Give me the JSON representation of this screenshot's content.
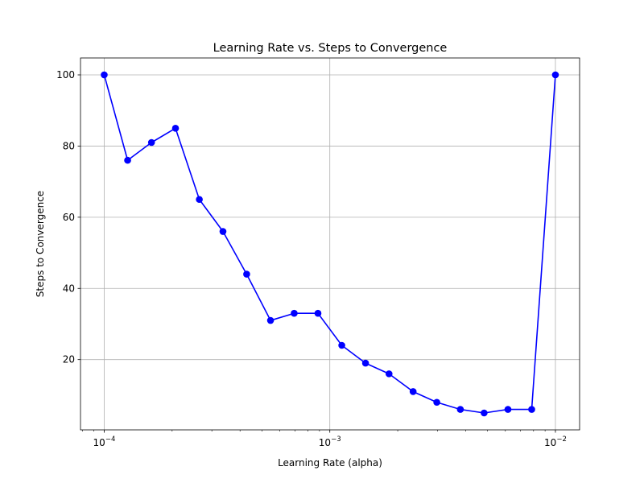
{
  "chart_data": {
    "type": "line",
    "title": "Learning Rate vs. Steps to Convergence",
    "xlabel": "Learning Rate (alpha)",
    "ylabel": "Steps to Convergence",
    "xscale": "log",
    "xlim": [
      7.85e-05,
      0.0128
    ],
    "ylim": [
      0.25,
      104.75
    ],
    "grid": true,
    "x_ticks": [
      {
        "value": 0.0001,
        "base": "10",
        "exp": "−4"
      },
      {
        "value": 0.001,
        "base": "10",
        "exp": "−3"
      },
      {
        "value": 0.01,
        "base": "10",
        "exp": "−2"
      }
    ],
    "y_ticks": [
      20,
      40,
      60,
      80,
      100
    ],
    "series": [
      {
        "color": "#0000ff",
        "marker": "circle",
        "x": [
          0.0001,
          0.000127,
          0.000162,
          0.000207,
          0.000264,
          0.000336,
          0.000428,
          0.000546,
          0.000695,
          0.000886,
          0.00113,
          0.00144,
          0.00183,
          0.00234,
          0.00298,
          0.00379,
          0.00483,
          0.00616,
          0.00785,
          0.01
        ],
        "values": [
          100,
          76,
          81,
          85,
          65,
          56,
          44,
          31,
          33,
          33,
          24,
          19,
          16,
          11,
          8,
          6,
          5,
          6,
          6,
          100
        ]
      }
    ]
  }
}
